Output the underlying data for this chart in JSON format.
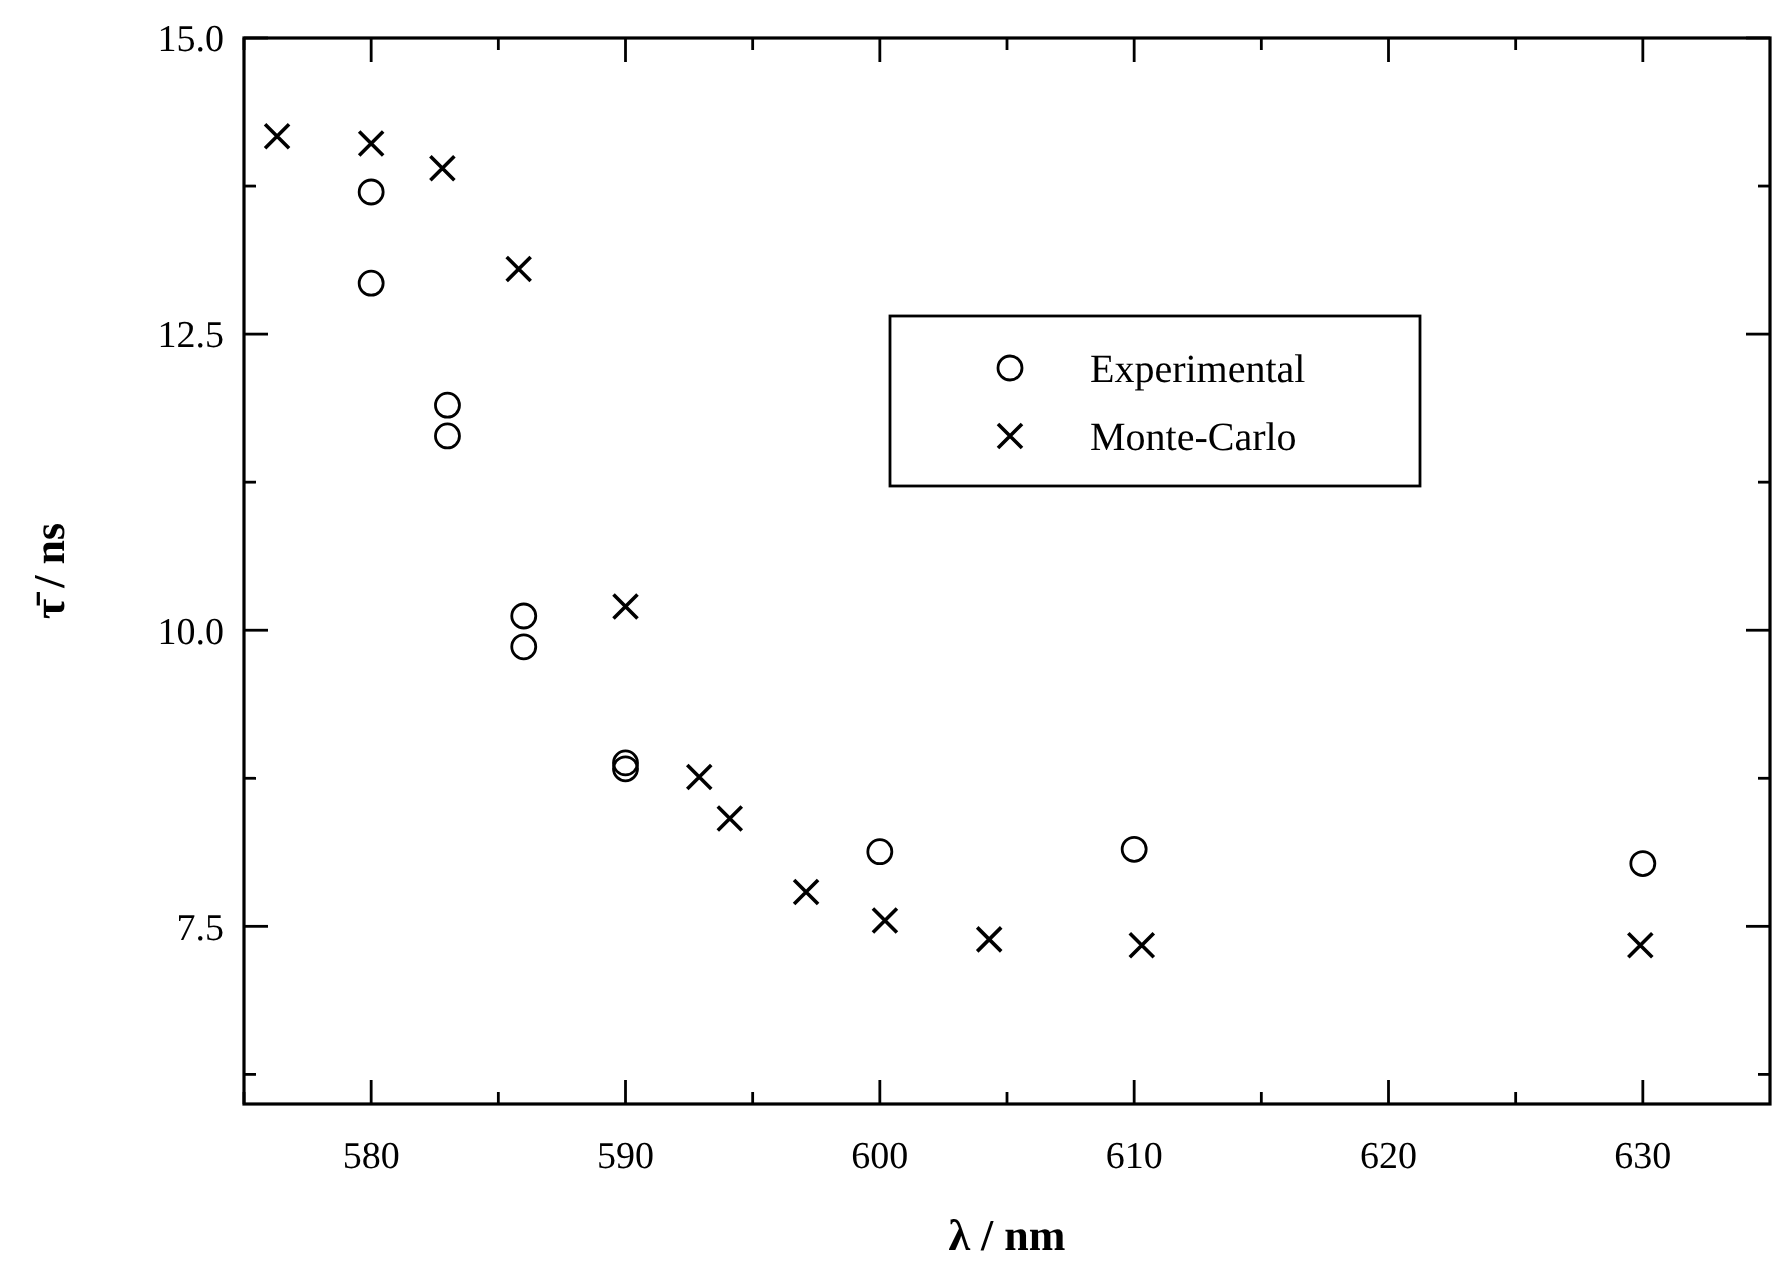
{
  "chart_data": {
    "type": "scatter",
    "xlabel": "λ / nm",
    "ylabel": "τ̄ / ns",
    "xlim": [
      575,
      635
    ],
    "ylim": [
      6,
      15
    ],
    "xticks": [
      {
        "value": 575,
        "label": null
      },
      580,
      {
        "value": 585,
        "label": null
      },
      590,
      {
        "value": 595,
        "label": null
      },
      600,
      {
        "value": 605,
        "label": null
      },
      610,
      {
        "value": 615,
        "label": null
      },
      620,
      {
        "value": 625,
        "label": null
      },
      630
    ],
    "yticks": [
      {
        "value": 6.25,
        "label": null
      },
      {
        "value": 7.5,
        "label": "7.5"
      },
      {
        "value": 8.75,
        "label": null
      },
      {
        "value": 10,
        "label": "10.0"
      },
      {
        "value": 11.25,
        "label": null
      },
      {
        "value": 12.5,
        "label": "12.5"
      },
      {
        "value": 13.75,
        "label": null
      },
      {
        "value": 15,
        "label": "15.0"
      }
    ],
    "grid": false,
    "legend": "top right",
    "series": [
      {
        "name": "Experimental",
        "color": "#000000",
        "marker": "circle",
        "x": [
          580,
          580,
          583,
          583,
          586,
          586,
          590,
          590,
          600,
          610,
          630
        ],
        "values": [
          13.7,
          12.93,
          11.9,
          11.64,
          10.12,
          9.86,
          8.88,
          8.83,
          8.13,
          8.15,
          8.03
        ]
      },
      {
        "name": "Monte-Carlo",
        "color": "#000000",
        "marker": "cross",
        "x": [
          576.3,
          580,
          582.8,
          585.8,
          590,
          592.9,
          594.1,
          597.1,
          600.2,
          604.3,
          610.3,
          629.9
        ],
        "values": [
          14.17,
          14.11,
          13.9,
          13.05,
          10.2,
          8.76,
          8.41,
          7.79,
          7.55,
          7.39,
          7.34,
          7.34
        ]
      }
    ]
  }
}
